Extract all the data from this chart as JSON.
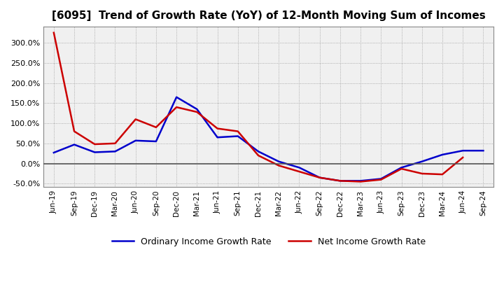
{
  "title": "[6095]  Trend of Growth Rate (YoY) of 12-Month Moving Sum of Incomes",
  "x_labels": [
    "Jun-19",
    "Sep-19",
    "Dec-19",
    "Mar-20",
    "Jun-20",
    "Sep-20",
    "Dec-20",
    "Mar-21",
    "Jun-21",
    "Sep-21",
    "Dec-21",
    "Mar-22",
    "Jun-22",
    "Sep-22",
    "Dec-22",
    "Mar-23",
    "Jun-23",
    "Sep-23",
    "Dec-23",
    "Mar-24",
    "Jun-24",
    "Sep-24"
  ],
  "ordinary_income": [
    0.27,
    0.47,
    0.28,
    0.3,
    0.57,
    0.55,
    1.65,
    1.35,
    0.65,
    0.68,
    0.3,
    0.05,
    -0.1,
    -0.35,
    -0.43,
    -0.43,
    -0.38,
    -0.1,
    0.05,
    0.22,
    0.32,
    0.32
  ],
  "net_income": [
    3.25,
    0.8,
    0.48,
    0.5,
    1.1,
    0.9,
    1.4,
    1.28,
    0.87,
    0.8,
    0.2,
    -0.05,
    -0.2,
    -0.35,
    -0.43,
    -0.45,
    -0.4,
    -0.13,
    -0.25,
    -0.27,
    0.15,
    null
  ],
  "ordinary_color": "#0000cc",
  "net_color": "#cc0000",
  "ylim_min": -0.58,
  "ylim_max": 3.4,
  "yticks": [
    -0.5,
    0.0,
    0.5,
    1.0,
    1.5,
    2.0,
    2.5,
    3.0
  ],
  "ytick_labels": [
    "-50.0%",
    "0.0%",
    "50.0%",
    "100.0%",
    "150.0%",
    "200.0%",
    "250.0%",
    "300.0%"
  ],
  "legend_ordinary": "Ordinary Income Growth Rate",
  "legend_net": "Net Income Growth Rate",
  "bg_color": "#ffffff",
  "plot_bg_color": "#f0f0f0",
  "grid_color": "#999999",
  "zero_line_color": "#555555",
  "spine_color": "#888888"
}
